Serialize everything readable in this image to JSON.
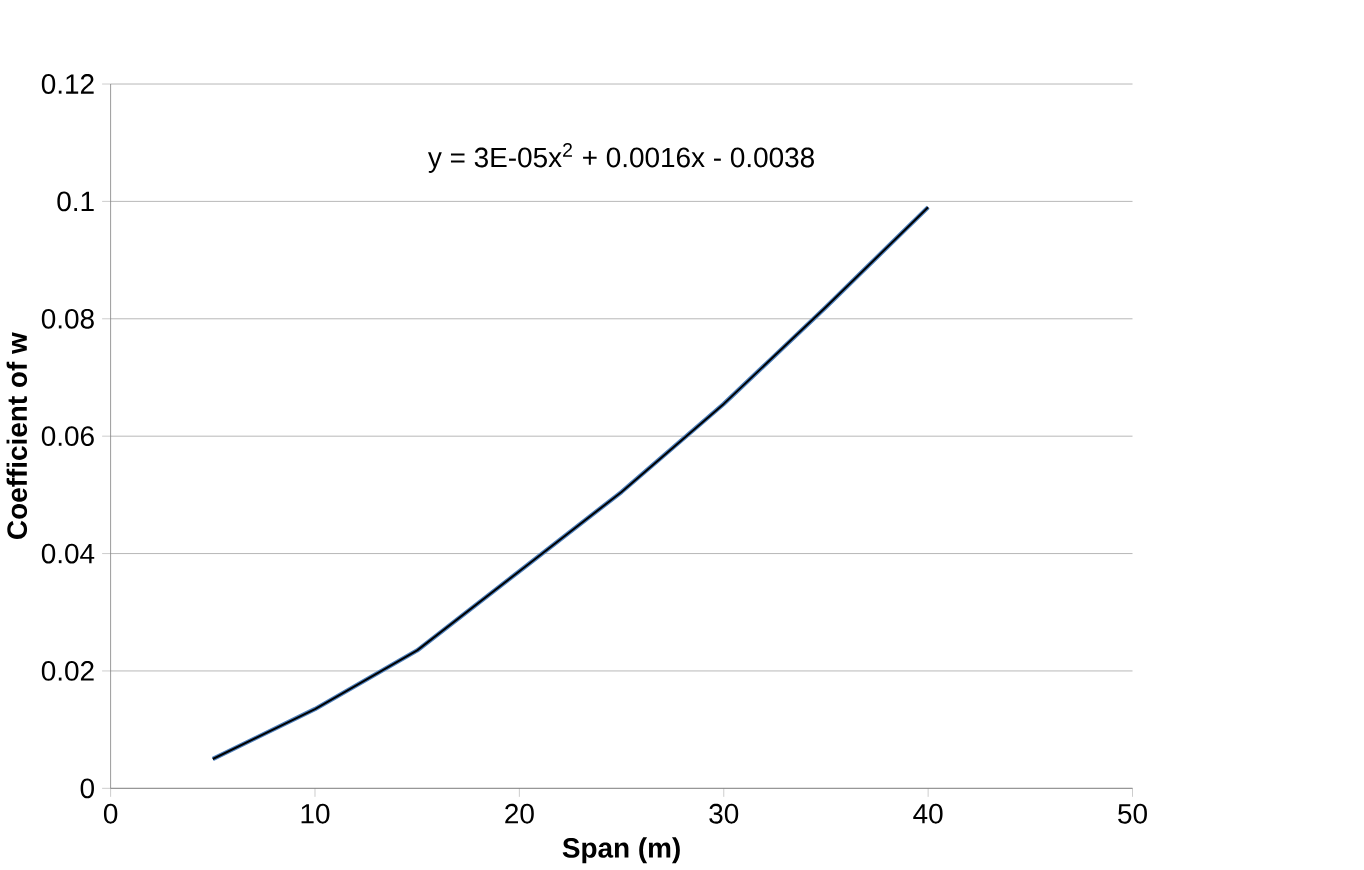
{
  "chart_data": {
    "type": "line",
    "xlabel": "Span (m)",
    "ylabel": "Coefficient of w",
    "xlim": [
      0,
      50
    ],
    "xticks": [
      0,
      10,
      20,
      30,
      40,
      50
    ],
    "ylim": [
      0,
      0.12
    ],
    "yticks": [
      0,
      0.02,
      0.04,
      0.06,
      0.08,
      0.1,
      0.12
    ],
    "grid": "y",
    "marker": "none",
    "annotations": [
      "y = 3E-05x$^{2}$ + 0.0016x - 0.0038"
    ],
    "series": [
      {
        "color": "#4f81bd",
        "x": [
          5,
          10,
          15,
          20,
          25,
          30,
          35,
          40
        ],
        "values": [
          0.005,
          0.0135,
          0.0235,
          0.037,
          0.0505,
          0.0655,
          0.082,
          0.099
        ]
      },
      {
        "color": "#000000",
        "x": [
          5,
          10,
          15,
          20,
          25,
          30,
          35,
          40
        ],
        "values": [
          0.005,
          0.0135,
          0.0235,
          0.037,
          0.0505,
          0.0655,
          0.082,
          0.099
        ]
      }
    ]
  }
}
